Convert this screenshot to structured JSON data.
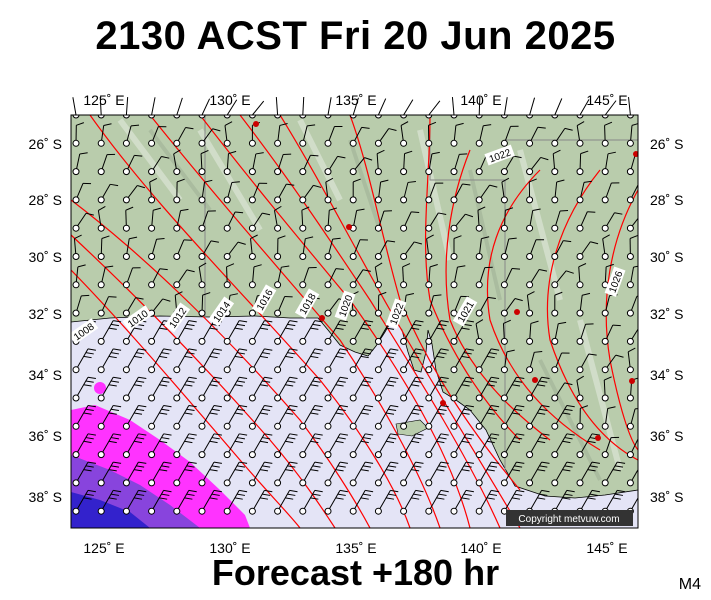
{
  "title": "2130 ACST Fri 20 Jun 2025",
  "footer": "Forecast +180 hr",
  "model_code": "M4",
  "copyright": "Copyright metvuw.com",
  "lon_ticks": [
    "125˚ E",
    "130˚ E",
    "135˚ E",
    "140˚ E",
    "145˚ E"
  ],
  "lat_ticks_left": [
    "26˚ S",
    "28˚ S",
    "30˚ S",
    "32˚ S",
    "34˚ S",
    "36˚ S",
    "38˚ S"
  ],
  "lat_ticks_right": [
    "26˚ S",
    "28˚ S",
    "30˚ S",
    "32˚ S",
    "34˚ S",
    "36˚ S",
    "38˚ S"
  ],
  "isobar_labels": [
    "1008",
    "1010",
    "1012",
    "1014",
    "1016",
    "1018",
    "1020",
    "1022",
    "1021",
    "1022",
    "1026"
  ],
  "colors": {
    "land": "#b9ccac",
    "sea": "#e4e4f6",
    "isobar": "#ff0000",
    "rain_magenta": "#ff33ff",
    "rain_purple": "#8844dd",
    "rain_blue": "#3322cc",
    "copyright_bg": "#333333"
  }
}
